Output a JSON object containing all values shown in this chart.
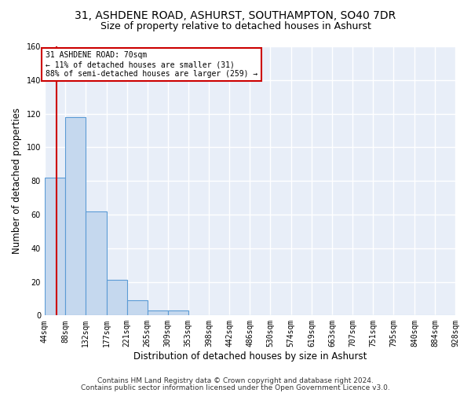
{
  "title1": "31, ASHDENE ROAD, ASHURST, SOUTHAMPTON, SO40 7DR",
  "title2": "Size of property relative to detached houses in Ashurst",
  "xlabel": "Distribution of detached houses by size in Ashurst",
  "ylabel": "Number of detached properties",
  "footer1": "Contains HM Land Registry data © Crown copyright and database right 2024.",
  "footer2": "Contains public sector information licensed under the Open Government Licence v3.0.",
  "bin_edges": [
    44,
    88,
    132,
    177,
    221,
    265,
    309,
    353,
    398,
    442,
    486,
    530,
    574,
    619,
    663,
    707,
    751,
    795,
    840,
    884,
    928
  ],
  "bin_counts": [
    82,
    118,
    62,
    21,
    9,
    3,
    3,
    0,
    0,
    0,
    0,
    0,
    0,
    0,
    0,
    0,
    0,
    0,
    0,
    0
  ],
  "bar_color": "#c5d8ee",
  "bar_edge_color": "#5b9bd5",
  "property_line_x": 70,
  "annotation_text": "31 ASHDENE ROAD: 70sqm\n← 11% of detached houses are smaller (31)\n88% of semi-detached houses are larger (259) →",
  "annotation_box_color": "white",
  "annotation_box_edge_color": "#cc0000",
  "property_line_color": "#cc0000",
  "ylim": [
    0,
    160
  ],
  "yticks": [
    0,
    20,
    40,
    60,
    80,
    100,
    120,
    140,
    160
  ],
  "bg_color": "#e8eef8",
  "grid_color": "white",
  "title1_fontsize": 10,
  "title2_fontsize": 9,
  "tick_label_fontsize": 7,
  "ylabel_fontsize": 8.5,
  "xlabel_fontsize": 8.5,
  "footer_fontsize": 6.5
}
